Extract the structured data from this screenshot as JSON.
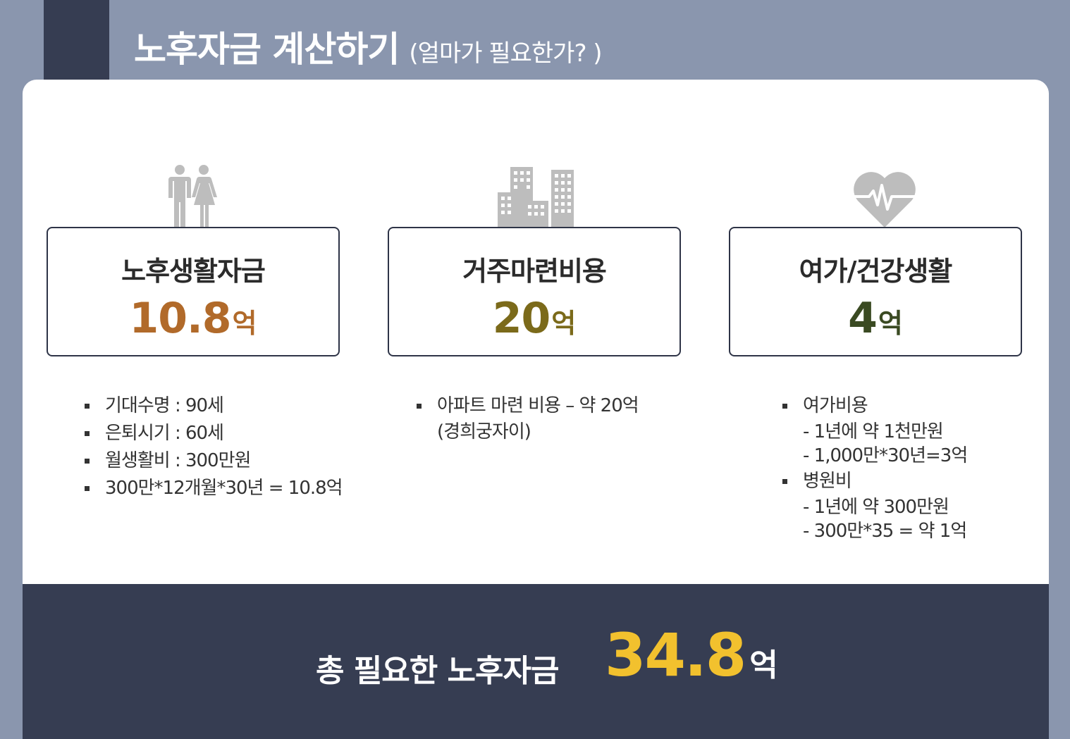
{
  "header": {
    "title": "노후자금 계산하기",
    "subtitle": "(얼마가 필요한가? )"
  },
  "colors": {
    "background": "#8a96ae",
    "dark_navy": "#363d52",
    "value_brown": "#b16a2a",
    "value_olive": "#7b6a1a",
    "value_green": "#3a4a22",
    "total_yellow": "#f2c12e",
    "icon_gray": "#bdbdbd"
  },
  "categories": [
    {
      "icon": "couple-icon",
      "title": "노후생활자금",
      "value": "10.8",
      "unit": "억",
      "details": [
        "기대수명 : 90세",
        "은퇴시기 : 60세",
        "월생활비 : 300만원",
        "300만*12개월*30년 = 10.8억"
      ]
    },
    {
      "icon": "buildings-icon",
      "title": "거주마련비용",
      "value": "20",
      "unit": "억",
      "details": [
        "아파트 마련 비용 – 약 20억",
        "(경희궁자이)"
      ]
    },
    {
      "icon": "heart-pulse-icon",
      "title": "여가/건강생활",
      "value": "4",
      "unit": "억",
      "details": {
        "leisure": "여가비용",
        "leisure_sub": [
          "- 1년에 약 1천만원",
          "- 1,000만*30년=3억"
        ],
        "hospital": "병원비",
        "hospital_sub": [
          "- 1년에 약 300만원",
          "- 300만*35 = 약 1억"
        ]
      }
    }
  ],
  "total": {
    "label": "총 필요한 노후자금",
    "value": "34.8",
    "unit": "억"
  }
}
